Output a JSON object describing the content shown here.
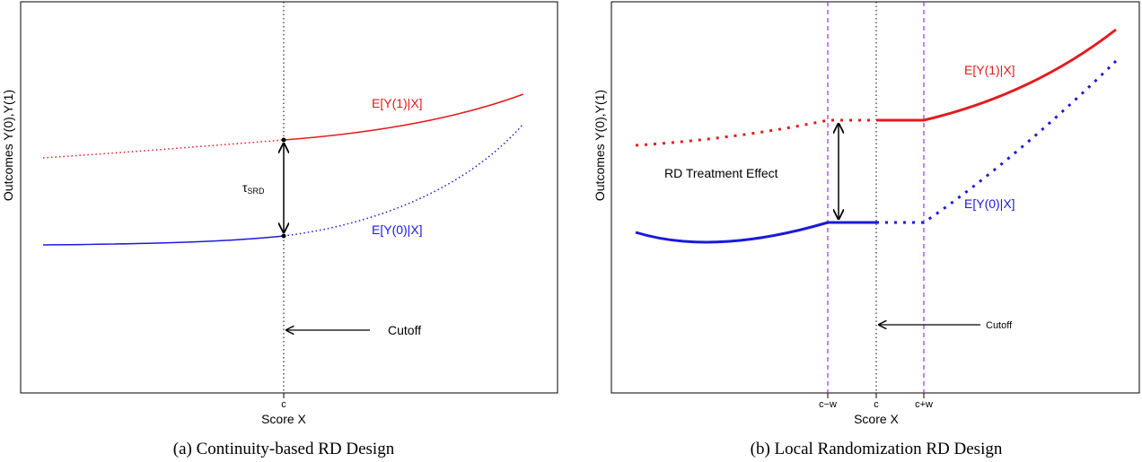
{
  "panel_a": {
    "caption": "(a) Continuity-based RD Design",
    "xlabel": "Score X",
    "ylabel": "Outcomes Y(0),Y(1)",
    "tick_c": "c",
    "label_y1": "E[Y(1)|X]",
    "label_y0": "E[Y(0)|X]",
    "tau_symbol": "τ",
    "tau_sub": "SRD",
    "cutoff_label": "Cutoff",
    "colors": {
      "treated": "#e41a1c",
      "control": "#1a1adb",
      "cutoff": "#000000"
    }
  },
  "panel_b": {
    "caption": "(b) Local Randomization RD Design",
    "xlabel": "Score X",
    "ylabel": "Outcomes Y(0),Y(1)",
    "tick_cw_minus": "c−w",
    "tick_c": "c",
    "tick_cw_plus": "c+w",
    "label_y1": "E[Y(1)|X]",
    "label_y0": "E[Y(0)|X]",
    "effect_label": "RD Treatment Effect",
    "cutoff_label": "Cutoff",
    "colors": {
      "treated": "#e41a1c",
      "control": "#1a1adb",
      "window": "#9932cc",
      "cutoff": "#000000"
    }
  }
}
